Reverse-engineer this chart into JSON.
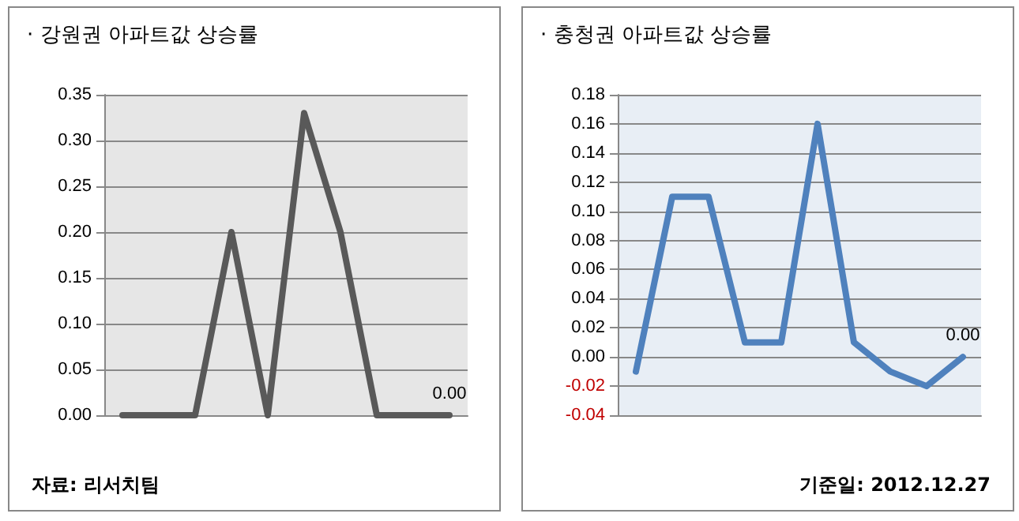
{
  "chart_data": [
    {
      "type": "line",
      "title": "· 강원권 아파트값 상승률",
      "categories": [
        null,
        null,
        null,
        null,
        null,
        null,
        null,
        null,
        null,
        null
      ],
      "series": [
        {
          "color": "#595959",
          "values": [
            0,
            0,
            0,
            0.2,
            0,
            0.33,
            0.2,
            0,
            0,
            0
          ],
          "value_labels": [
            null,
            null,
            null,
            null,
            null,
            null,
            null,
            null,
            null,
            "0.00"
          ]
        }
      ],
      "ylim": [
        0,
        0.35
      ],
      "yticks": [
        {
          "value": 0,
          "label": "0.00"
        },
        {
          "value": 0.05,
          "label": "0.05"
        },
        {
          "value": 0.1,
          "label": "0.10"
        },
        {
          "value": 0.15,
          "label": "0.15"
        },
        {
          "value": 0.2,
          "label": "0.20"
        },
        {
          "value": 0.25,
          "label": "0.25"
        },
        {
          "value": 0.3,
          "label": "0.30"
        },
        {
          "value": 0.35,
          "label": "0.35"
        }
      ],
      "grid": "y",
      "marker": "none",
      "line_style": "solid",
      "annotations": [
        "자료: 리서치팀"
      ]
    },
    {
      "type": "line",
      "title": "· 충청권 아파트값 상승률",
      "categories": [
        null,
        null,
        null,
        null,
        null,
        null,
        null,
        null,
        null,
        null
      ],
      "series": [
        {
          "color": "#4f81bd",
          "values": [
            -0.01,
            0.11,
            0.11,
            0.01,
            0.01,
            0.16,
            0.01,
            -0.01,
            -0.02,
            0
          ],
          "value_labels": [
            null,
            null,
            null,
            null,
            null,
            null,
            null,
            null,
            null,
            "0.00"
          ]
        }
      ],
      "ylim": [
        -0.04,
        0.18
      ],
      "yticks": [
        {
          "value": -0.04,
          "label": "-0.04"
        },
        {
          "value": -0.02,
          "label": "-0.02"
        },
        {
          "value": 0,
          "label": "0.00"
        },
        {
          "value": 0.02,
          "label": "0.02"
        },
        {
          "value": 0.04,
          "label": "0.04"
        },
        {
          "value": 0.06,
          "label": "0.06"
        },
        {
          "value": 0.08,
          "label": "0.08"
        },
        {
          "value": 0.1,
          "label": "0.10"
        },
        {
          "value": 0.12,
          "label": "0.12"
        },
        {
          "value": 0.14,
          "label": "0.14"
        },
        {
          "value": 0.16,
          "label": "0.16"
        },
        {
          "value": 0.18,
          "label": "0.18"
        }
      ],
      "grid": "y",
      "marker": "none",
      "line_style": "solid",
      "annotations": [
        "기준일: 2012.12.27"
      ]
    }
  ]
}
